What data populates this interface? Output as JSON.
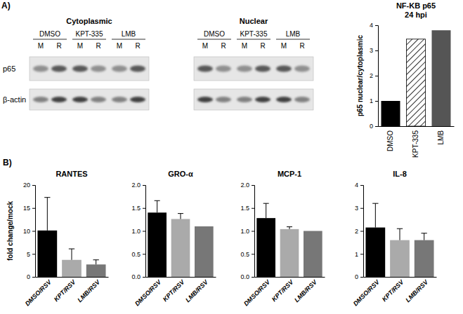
{
  "panel_labels": [
    "A)",
    "B)"
  ],
  "blot": {
    "fractions": [
      {
        "label": "Cytoplasmic",
        "groups": [
          {
            "label": "DMSO",
            "lanes": [
              "M",
              "R"
            ]
          },
          {
            "label": "KPT-335",
            "lanes": [
              "M",
              "R"
            ]
          },
          {
            "label": "LMB",
            "lanes": [
              "M",
              "R"
            ]
          }
        ]
      },
      {
        "label": "Nuclear",
        "groups": [
          {
            "label": "DMSO",
            "lanes": [
              "M",
              "R"
            ]
          },
          {
            "label": "KPT-335",
            "lanes": [
              "M",
              "R"
            ]
          },
          {
            "label": "LMB",
            "lanes": [
              "M",
              "R"
            ]
          }
        ]
      }
    ],
    "rows": [
      "p65",
      "β-actin"
    ]
  },
  "chart_data": [
    {
      "type": "bar",
      "title": "NF-KB p65",
      "subtitle": "24 hpi",
      "y_label": "p65 nuclear/cytoplasmic",
      "categories": [
        "DMSO",
        "KPT-335",
        "LMB"
      ],
      "values": [
        1,
        3.45,
        3.8
      ],
      "colors": [
        "#000000",
        "#ffffff",
        "#555555"
      ],
      "ylim": [
        0,
        4
      ],
      "yticks": [
        0,
        1,
        2,
        3,
        4
      ]
    },
    {
      "type": "bar",
      "title": "RANTES",
      "y_label": "fold change/mock",
      "categories": [
        "DMSO/RSV",
        "KPT/RSV",
        "LMB/RSV"
      ],
      "values": [
        10.1,
        3.7,
        2.7
      ],
      "errors": [
        7.2,
        2.4,
        1.0
      ],
      "colors": [
        "#000000",
        "#aaaaaa",
        "#777777"
      ],
      "ylim": [
        0,
        20
      ],
      "yticks": [
        0,
        5,
        10,
        15,
        20
      ]
    },
    {
      "type": "bar",
      "title": "GRO-α",
      "categories": [
        "DMSO/RSV",
        "KPT/RSV",
        "LMB/RSV"
      ],
      "values": [
        1.4,
        1.26,
        1.1
      ],
      "errors": [
        0.26,
        0.12,
        null
      ],
      "colors": [
        "#000000",
        "#aaaaaa",
        "#777777"
      ],
      "ylim": [
        0,
        2
      ],
      "yticks": [
        {
          "value": 0,
          "label": "0.0"
        },
        {
          "value": 0.5,
          "label": "0.5"
        },
        {
          "value": 1,
          "label": "1.0"
        },
        {
          "value": 1.5,
          "label": "1.5"
        },
        {
          "value": 2,
          "label": "2.0"
        }
      ]
    },
    {
      "type": "bar",
      "title": "MCP-1",
      "categories": [
        "DMSO/RSV",
        "KPT/RSV",
        "LMB/RSV"
      ],
      "values": [
        1.28,
        1.04,
        1.0
      ],
      "errors": [
        0.32,
        0.05,
        null
      ],
      "colors": [
        "#000000",
        "#aaaaaa",
        "#777777"
      ],
      "ylim": [
        0,
        2
      ],
      "yticks": [
        {
          "value": 0,
          "label": "0.0"
        },
        {
          "value": 0.5,
          "label": "0.5"
        },
        {
          "value": 1,
          "label": "1.0"
        },
        {
          "value": 1.5,
          "label": "1.5"
        },
        {
          "value": 2,
          "label": "2.0"
        }
      ]
    },
    {
      "type": "bar",
      "title": "IL-8",
      "categories": [
        "DMSO/RSV",
        "KPT/RSV",
        "LMB/RSV"
      ],
      "values": [
        2.15,
        1.6,
        1.6
      ],
      "errors": [
        1.05,
        0.5,
        0.3
      ],
      "colors": [
        "#000000",
        "#aaaaaa",
        "#777777"
      ],
      "ylim": [
        0,
        4
      ],
      "yticks": [
        0,
        1,
        2,
        3,
        4
      ]
    }
  ]
}
